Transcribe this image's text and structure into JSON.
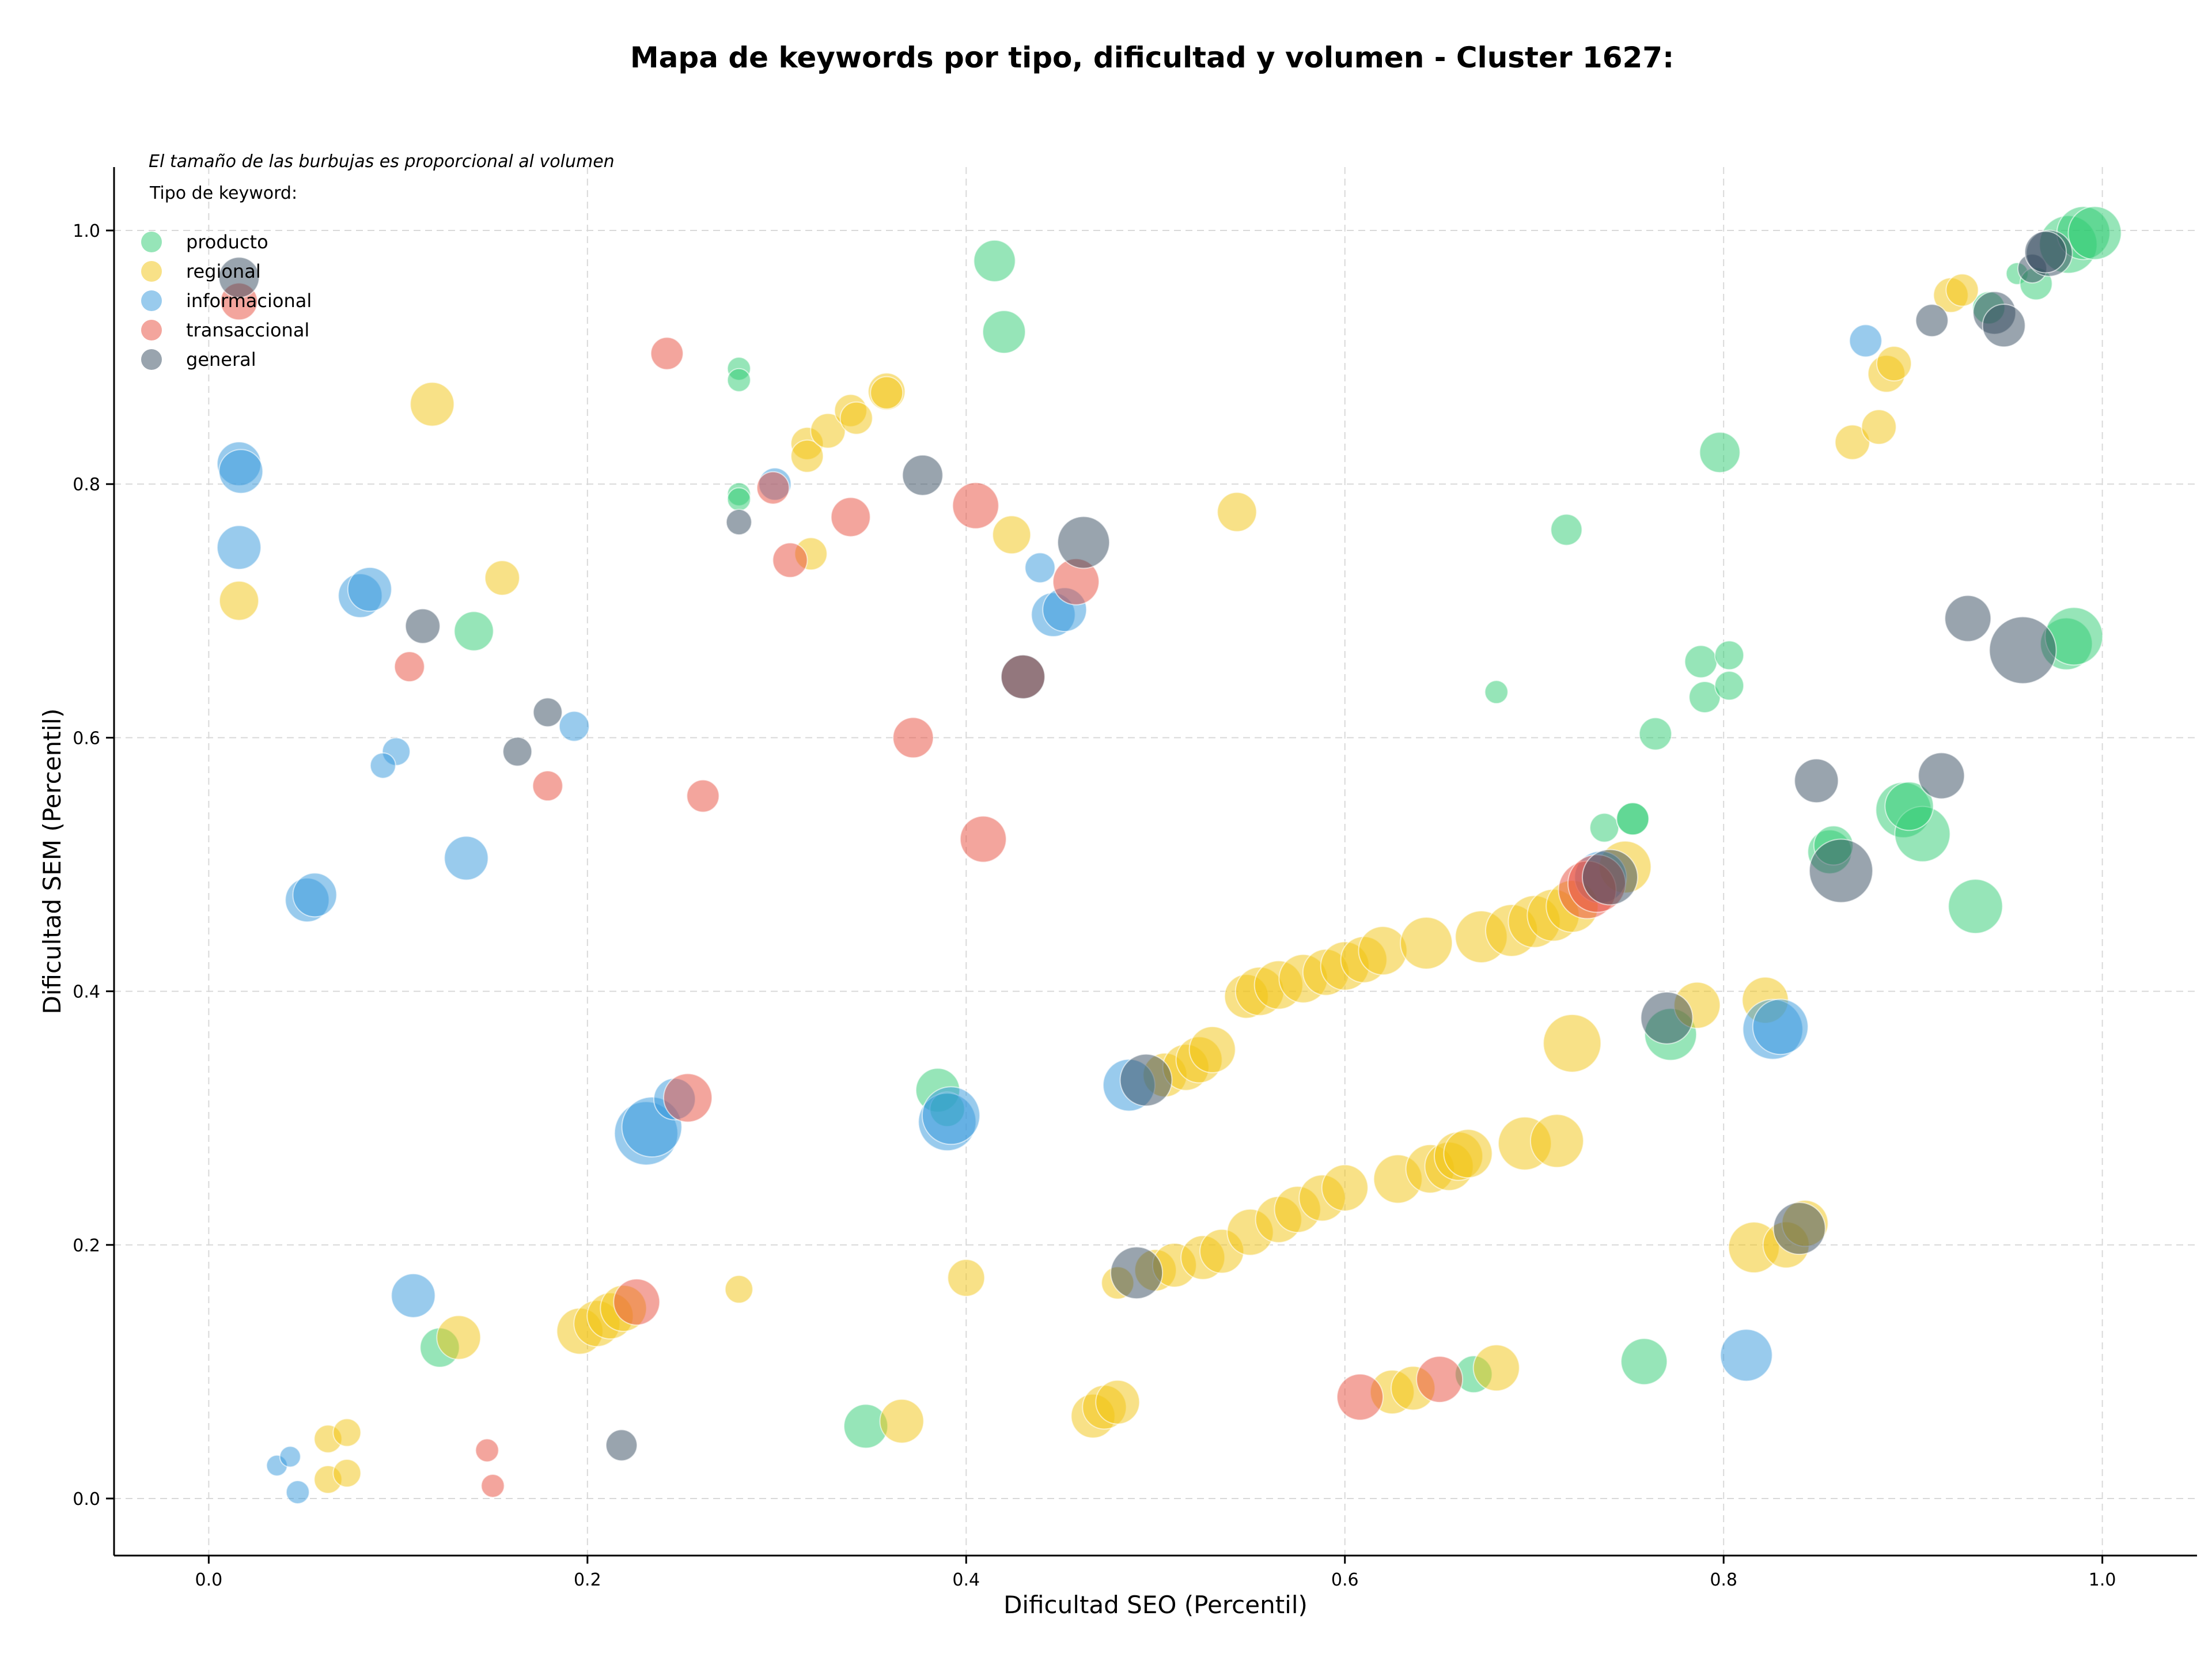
{
  "chart_data": {
    "type": "scatter",
    "title": "Mapa de keywords por tipo, dificultad y volumen - Cluster 1627:",
    "xlabel": "Dificultad SEO (Percentil)",
    "ylabel": "Dificultad SEM (Percentil)",
    "xlim": [
      -0.05,
      1.05
    ],
    "ylim": [
      -0.045,
      1.05
    ],
    "xticks": [
      "0.0",
      "0.2",
      "0.4",
      "0.6",
      "0.8",
      "1.0"
    ],
    "yticks": [
      "0.0",
      "0.2",
      "0.4",
      "0.6",
      "0.8",
      "1.0"
    ],
    "grid": true,
    "annotation": "El tamaño de las burbujas es proporcional al volumen",
    "legend": {
      "title": "Tipo de keyword:",
      "position": "top-left"
    },
    "colors": {
      "producto": "#2ecc71",
      "regional": "#f1c40f",
      "informacional": "#3498db",
      "transaccional": "#e74c3c",
      "general": "#34495e"
    },
    "series": [
      {
        "name": "producto",
        "points": [
          [
            0.415,
            0.976,
            36
          ],
          [
            0.42,
            0.92,
            37
          ],
          [
            0.28,
            0.891,
            20
          ],
          [
            0.28,
            0.882,
            20
          ],
          [
            0.28,
            0.792,
            20
          ],
          [
            0.28,
            0.788,
            20
          ],
          [
            0.14,
            0.684,
            34
          ],
          [
            0.798,
            0.825,
            35
          ],
          [
            0.717,
            0.764,
            27
          ],
          [
            0.68,
            0.636,
            20
          ],
          [
            0.764,
            0.603,
            28
          ],
          [
            0.788,
            0.66,
            28
          ],
          [
            0.803,
            0.665,
            25
          ],
          [
            0.79,
            0.632,
            27
          ],
          [
            0.803,
            0.641,
            25
          ],
          [
            0.737,
            0.529,
            25
          ],
          [
            0.752,
            0.536,
            28
          ],
          [
            0.752,
            0.536,
            28
          ],
          [
            0.856,
            0.51,
            38
          ],
          [
            0.858,
            0.515,
            34
          ],
          [
            0.895,
            0.543,
            48
          ],
          [
            0.905,
            0.524,
            48
          ],
          [
            0.898,
            0.546,
            42
          ],
          [
            0.933,
            0.467,
            47
          ],
          [
            0.772,
            0.366,
            45
          ],
          [
            0.981,
            0.674,
            45
          ],
          [
            0.985,
            0.68,
            50
          ],
          [
            0.955,
            0.966,
            19
          ],
          [
            0.965,
            0.958,
            28
          ],
          [
            0.94,
            0.939,
            28
          ],
          [
            0.982,
            0.989,
            50
          ],
          [
            0.99,
            0.998,
            46
          ],
          [
            0.996,
            0.998,
            46
          ],
          [
            0.122,
            0.119,
            34
          ],
          [
            0.385,
            0.322,
            38
          ],
          [
            0.39,
            0.307,
            30
          ],
          [
            0.347,
            0.057,
            38
          ],
          [
            0.668,
            0.098,
            32
          ],
          [
            0.758,
            0.108,
            40
          ]
        ]
      },
      {
        "name": "regional",
        "points": [
          [
            0.118,
            0.863,
            38
          ],
          [
            0.155,
            0.726,
            30
          ],
          [
            0.016,
            0.708,
            34
          ],
          [
            0.316,
            0.832,
            28
          ],
          [
            0.316,
            0.822,
            28
          ],
          [
            0.327,
            0.842,
            30
          ],
          [
            0.339,
            0.858,
            28
          ],
          [
            0.342,
            0.852,
            28
          ],
          [
            0.358,
            0.873,
            32
          ],
          [
            0.358,
            0.872,
            28
          ],
          [
            0.318,
            0.745,
            28
          ],
          [
            0.424,
            0.76,
            33
          ],
          [
            0.543,
            0.778,
            34
          ],
          [
            0.868,
            0.833,
            30
          ],
          [
            0.882,
            0.845,
            30
          ],
          [
            0.886,
            0.887,
            32
          ],
          [
            0.89,
            0.895,
            30
          ],
          [
            0.92,
            0.949,
            30
          ],
          [
            0.926,
            0.953,
            28
          ],
          [
            0.548,
            0.396,
            38
          ],
          [
            0.555,
            0.4,
            42
          ],
          [
            0.565,
            0.405,
            42
          ],
          [
            0.578,
            0.41,
            42
          ],
          [
            0.59,
            0.415,
            40
          ],
          [
            0.6,
            0.42,
            42
          ],
          [
            0.61,
            0.425,
            40
          ],
          [
            0.62,
            0.432,
            42
          ],
          [
            0.643,
            0.438,
            45
          ],
          [
            0.672,
            0.443,
            45
          ],
          [
            0.688,
            0.448,
            45
          ],
          [
            0.7,
            0.455,
            45
          ],
          [
            0.71,
            0.46,
            45
          ],
          [
            0.72,
            0.467,
            45
          ],
          [
            0.748,
            0.498,
            45
          ],
          [
            0.505,
            0.334,
            38
          ],
          [
            0.516,
            0.34,
            40
          ],
          [
            0.523,
            0.346,
            40
          ],
          [
            0.53,
            0.354,
            40
          ],
          [
            0.72,
            0.359,
            50
          ],
          [
            0.822,
            0.393,
            40
          ],
          [
            0.786,
            0.389,
            40
          ],
          [
            0.5,
            0.18,
            36
          ],
          [
            0.51,
            0.184,
            38
          ],
          [
            0.525,
            0.19,
            38
          ],
          [
            0.535,
            0.195,
            38
          ],
          [
            0.55,
            0.21,
            40
          ],
          [
            0.565,
            0.22,
            40
          ],
          [
            0.575,
            0.228,
            40
          ],
          [
            0.588,
            0.237,
            40
          ],
          [
            0.6,
            0.245,
            40
          ],
          [
            0.628,
            0.252,
            42
          ],
          [
            0.645,
            0.26,
            42
          ],
          [
            0.655,
            0.262,
            42
          ],
          [
            0.66,
            0.27,
            42
          ],
          [
            0.665,
            0.272,
            42
          ],
          [
            0.695,
            0.28,
            46
          ],
          [
            0.712,
            0.282,
            46
          ],
          [
            0.816,
            0.198,
            44
          ],
          [
            0.833,
            0.2,
            40
          ],
          [
            0.843,
            0.217,
            40
          ],
          [
            0.48,
            0.17,
            28
          ],
          [
            0.467,
            0.065,
            38
          ],
          [
            0.473,
            0.072,
            38
          ],
          [
            0.48,
            0.076,
            38
          ],
          [
            0.625,
            0.084,
            38
          ],
          [
            0.636,
            0.087,
            38
          ],
          [
            0.68,
            0.103,
            40
          ],
          [
            0.196,
            0.132,
            40
          ],
          [
            0.205,
            0.138,
            40
          ],
          [
            0.212,
            0.144,
            40
          ],
          [
            0.219,
            0.15,
            40
          ],
          [
            0.132,
            0.127,
            38
          ],
          [
            0.28,
            0.165,
            24
          ],
          [
            0.4,
            0.174,
            32
          ],
          [
            0.366,
            0.061,
            38
          ],
          [
            0.063,
            0.047,
            24
          ],
          [
            0.073,
            0.052,
            24
          ],
          [
            0.063,
            0.015,
            24
          ],
          [
            0.073,
            0.02,
            24
          ]
        ]
      },
      {
        "name": "informacional",
        "points": [
          [
            0.016,
            0.816,
            38
          ],
          [
            0.017,
            0.81,
            38
          ],
          [
            0.016,
            0.75,
            38
          ],
          [
            0.08,
            0.712,
            38
          ],
          [
            0.085,
            0.717,
            38
          ],
          [
            0.099,
            0.589,
            24
          ],
          [
            0.092,
            0.578,
            22
          ],
          [
            0.193,
            0.609,
            26
          ],
          [
            0.136,
            0.505,
            38
          ],
          [
            0.052,
            0.472,
            38
          ],
          [
            0.056,
            0.476,
            38
          ],
          [
            0.299,
            0.8,
            28
          ],
          [
            0.439,
            0.734,
            26
          ],
          [
            0.446,
            0.697,
            38
          ],
          [
            0.452,
            0.701,
            38
          ],
          [
            0.875,
            0.913,
            28
          ],
          [
            0.108,
            0.16,
            38
          ],
          [
            0.231,
            0.288,
            55
          ],
          [
            0.234,
            0.293,
            52
          ],
          [
            0.246,
            0.315,
            36
          ],
          [
            0.39,
            0.297,
            50
          ],
          [
            0.392,
            0.302,
            50
          ],
          [
            0.486,
            0.326,
            45
          ],
          [
            0.826,
            0.37,
            52
          ],
          [
            0.83,
            0.372,
            48
          ],
          [
            0.812,
            0.113,
            45
          ],
          [
            0.735,
            0.49,
            45
          ],
          [
            0.036,
            0.026,
            18
          ],
          [
            0.043,
            0.033,
            18
          ],
          [
            0.047,
            0.005,
            20
          ]
        ]
      },
      {
        "name": "transaccional",
        "points": [
          [
            0.016,
            0.944,
            32
          ],
          [
            0.242,
            0.903,
            28
          ],
          [
            0.106,
            0.656,
            26
          ],
          [
            0.179,
            0.562,
            26
          ],
          [
            0.261,
            0.554,
            28
          ],
          [
            0.298,
            0.797,
            28
          ],
          [
            0.307,
            0.74,
            30
          ],
          [
            0.339,
            0.774,
            34
          ],
          [
            0.372,
            0.6,
            35
          ],
          [
            0.405,
            0.783,
            40
          ],
          [
            0.409,
            0.52,
            40
          ],
          [
            0.43,
            0.648,
            38
          ],
          [
            0.458,
            0.723,
            40
          ],
          [
            0.253,
            0.316,
            42
          ],
          [
            0.226,
            0.155,
            40
          ],
          [
            0.608,
            0.08,
            40
          ],
          [
            0.65,
            0.094,
            40
          ],
          [
            0.728,
            0.48,
            50
          ],
          [
            0.733,
            0.485,
            50
          ],
          [
            0.147,
            0.038,
            20
          ],
          [
            0.15,
            0.01,
            20
          ]
        ]
      },
      {
        "name": "general",
        "points": [
          [
            0.016,
            0.963,
            35
          ],
          [
            0.113,
            0.688,
            30
          ],
          [
            0.163,
            0.589,
            25
          ],
          [
            0.179,
            0.62,
            25
          ],
          [
            0.28,
            0.77,
            22
          ],
          [
            0.377,
            0.807,
            35
          ],
          [
            0.43,
            0.648,
            38
          ],
          [
            0.462,
            0.754,
            45
          ],
          [
            0.49,
            0.178,
            45
          ],
          [
            0.495,
            0.33,
            45
          ],
          [
            0.218,
            0.042,
            27
          ],
          [
            0.77,
            0.379,
            45
          ],
          [
            0.84,
            0.213,
            45
          ],
          [
            0.849,
            0.566,
            38
          ],
          [
            0.862,
            0.495,
            55
          ],
          [
            0.915,
            0.57,
            40
          ],
          [
            0.929,
            0.694,
            40
          ],
          [
            0.958,
            0.669,
            58
          ],
          [
            0.91,
            0.929,
            28
          ],
          [
            0.943,
            0.935,
            37
          ],
          [
            0.948,
            0.925,
            37
          ],
          [
            0.963,
            0.97,
            25
          ],
          [
            0.972,
            0.982,
            40
          ],
          [
            0.97,
            0.983,
            36
          ],
          [
            0.74,
            0.49,
            48
          ]
        ]
      }
    ]
  }
}
